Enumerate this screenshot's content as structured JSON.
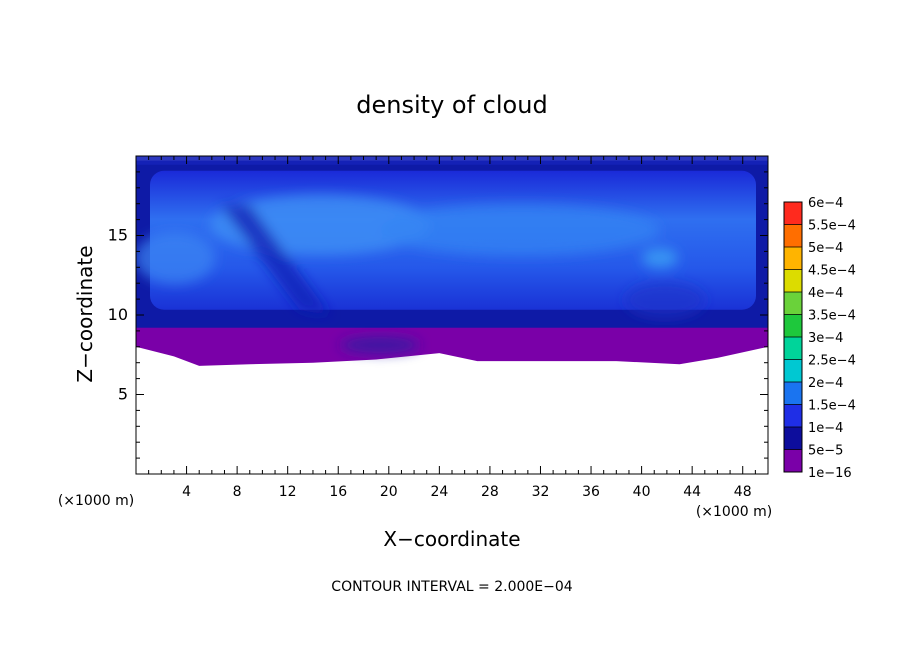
{
  "chart_data": {
    "type": "heatmap",
    "title": "density of cloud",
    "xlabel": "X−coordinate",
    "ylabel": "Z−coordinate",
    "x_unit_left": "(×1000 m)",
    "x_unit_right": "(×1000 m)",
    "footer": "CONTOUR INTERVAL = 2.000E−04",
    "xlim": [
      0,
      50
    ],
    "ylim": [
      0,
      20
    ],
    "x_ticks": [
      4,
      8,
      12,
      16,
      20,
      24,
      28,
      32,
      36,
      40,
      44,
      48
    ],
    "x_tick_labels": [
      "4",
      "8",
      "12",
      "16",
      "20",
      "24",
      "28",
      "32",
      "36",
      "40",
      "44",
      "48"
    ],
    "y_ticks": [
      5,
      10,
      15
    ],
    "y_tick_labels": [
      "5",
      "10",
      "15"
    ],
    "colorbar": {
      "labels": [
        "1e−16",
        "5e−5",
        "1e−4",
        "1.5e−4",
        "2e−4",
        "2.5e−4",
        "3e−4",
        "3.5e−4",
        "4e−4",
        "4.5e−4",
        "5e−4",
        "5.5e−4",
        "6e−4"
      ],
      "colors": [
        "#7a00a8",
        "#0d0d9c",
        "#1f2ee6",
        "#1a74f0",
        "#00c8d2",
        "#00d49a",
        "#1ec83c",
        "#6ad23a",
        "#dcdc00",
        "#ffb400",
        "#ff6e00",
        "#ff2a1e",
        "#ff7a82"
      ]
    },
    "cloud_extent": {
      "purple_base_z": [
        [
          0,
          8
        ],
        [
          3,
          7.4
        ],
        [
          5,
          6.8
        ],
        [
          9,
          6.9
        ],
        [
          14,
          7
        ],
        [
          19,
          7.2
        ],
        [
          24,
          7.6
        ],
        [
          27,
          7.1
        ],
        [
          33,
          7.1
        ],
        [
          38,
          7.1
        ],
        [
          43,
          6.9
        ],
        [
          46,
          7.3
        ],
        [
          50,
          8
        ]
      ],
      "dark_base_z": 9.2,
      "top_z": 19.7
    }
  }
}
